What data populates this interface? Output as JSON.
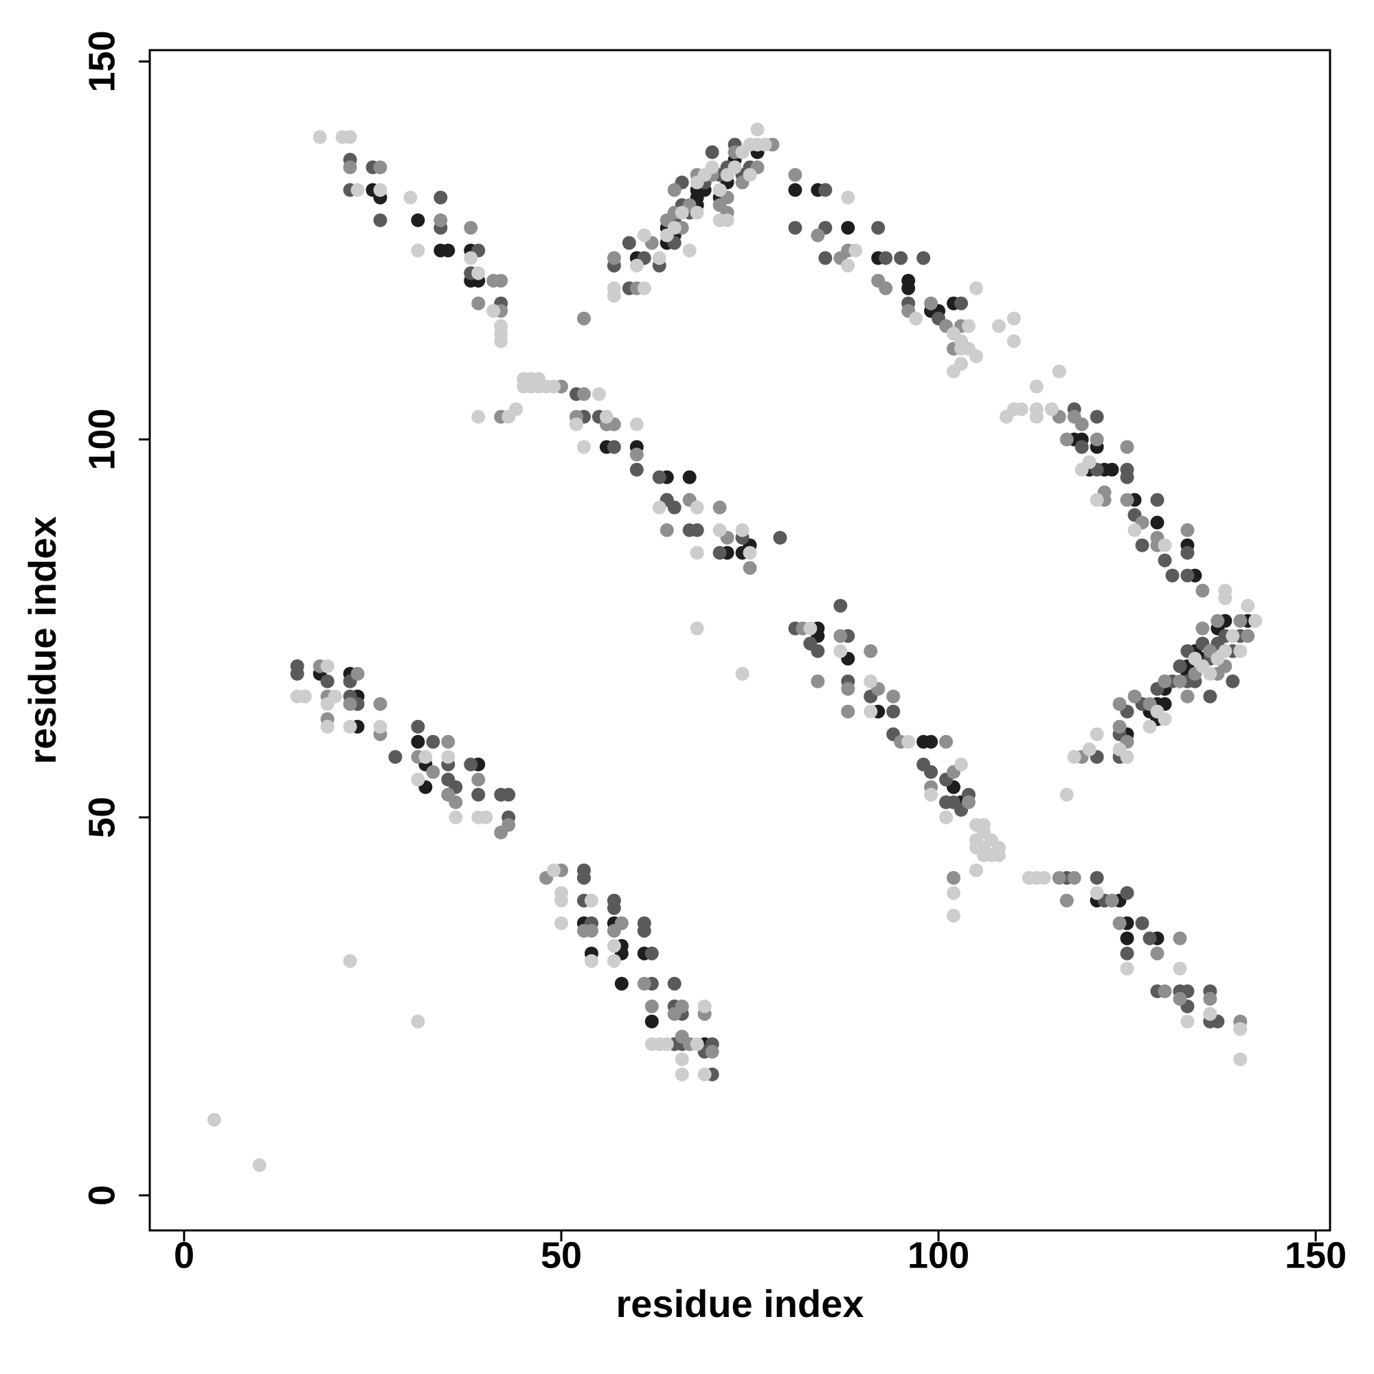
{
  "chart_data": {
    "type": "scatter",
    "xlabel": "residue index",
    "ylabel": "residue index",
    "xlim": [
      -4.55,
      151.9
    ],
    "ylim": [
      -4.64,
      151.5
    ],
    "xticks": [
      0,
      50,
      100,
      150
    ],
    "yticks": [
      0,
      50,
      100,
      150
    ],
    "grid": false,
    "series": [
      {
        "color": "#1e1e1e",
        "x": [
          25,
          26,
          31,
          34,
          35,
          38,
          38,
          39,
          56,
          60,
          64,
          67,
          72,
          74,
          75,
          60,
          64,
          65,
          64,
          68,
          68,
          69,
          71,
          72,
          73,
          76,
          68,
          81,
          84,
          88,
          92,
          96,
          96,
          99,
          100,
          102,
          118,
          119,
          121,
          122,
          123,
          126,
          129,
          133,
          134,
          120,
          125,
          128,
          129,
          130,
          130,
          133,
          133,
          134,
          135,
          137,
          138,
          141,
          129,
          84,
          84,
          88,
          92,
          98,
          99,
          102,
          103,
          121,
          124,
          125,
          125,
          129,
          18,
          22,
          23,
          23,
          31,
          32,
          32,
          39,
          53,
          54,
          57,
          58,
          58,
          61,
          62,
          69,
          58
        ],
        "values": [
          133,
          132,
          129,
          125,
          125,
          125,
          121,
          121,
          99,
          99,
          95,
          95,
          85,
          85,
          86,
          124,
          126,
          127,
          128,
          131,
          132,
          133,
          132,
          134,
          137,
          138,
          133,
          133,
          133,
          128,
          124,
          121,
          120,
          117,
          117,
          118,
          100,
          100,
          99,
          96,
          96,
          92,
          89,
          86,
          82,
          96,
          61,
          64,
          65,
          65,
          67,
          70,
          69,
          72,
          71,
          75,
          76,
          76,
          63,
          75,
          74,
          71,
          64,
          60,
          60,
          54,
          52,
          39,
          39,
          36,
          34,
          34,
          69,
          69,
          66,
          62,
          60,
          57,
          54,
          57,
          36,
          32,
          36,
          33,
          32,
          32,
          23,
          20,
          28
        ]
      },
      {
        "color": "#5a5a5a",
        "x": [
          22,
          22,
          25,
          26,
          34,
          34,
          39,
          38,
          42,
          52,
          53,
          55,
          57,
          60,
          64,
          65,
          63,
          67,
          71,
          74,
          79,
          68,
          57,
          59,
          61,
          63,
          65,
          65,
          66,
          67,
          69,
          71,
          72,
          74,
          75,
          73,
          70,
          66,
          59,
          81,
          85,
          85,
          92,
          93,
          95,
          96,
          98,
          100,
          103,
          85,
          118,
          119,
          121,
          121,
          125,
          126,
          127,
          129,
          130,
          131,
          133,
          133,
          125,
          121,
          124,
          124,
          125,
          127,
          129,
          131,
          132,
          133,
          133,
          134,
          135,
          136,
          137,
          138,
          139,
          140,
          139,
          136,
          81,
          83,
          84,
          87,
          88,
          88,
          91,
          94,
          94,
          98,
          99,
          101,
          101,
          104,
          102,
          103,
          117,
          121,
          122,
          125,
          125,
          127,
          128,
          129,
          132,
          133,
          133,
          136,
          136,
          137,
          15,
          15,
          19,
          22,
          22,
          23,
          28,
          31,
          33,
          35,
          35,
          36,
          38,
          39,
          43,
          43,
          42,
          53,
          53,
          53,
          54,
          57,
          57,
          61,
          61,
          62,
          62,
          65,
          65,
          66,
          65,
          66,
          69,
          70,
          70
        ],
        "values": [
          137,
          133,
          136,
          129,
          132,
          128,
          125,
          122,
          118,
          106,
          103,
          103,
          99,
          96,
          92,
          91,
          95,
          88,
          85,
          87,
          87,
          88,
          123,
          126,
          124,
          123,
          126,
          129,
          131,
          130,
          134,
          135,
          136,
          135,
          136,
          139,
          138,
          134,
          120,
          128,
          128,
          133,
          128,
          124,
          124,
          118,
          124,
          116,
          118,
          124,
          104,
          99,
          103,
          96,
          96,
          90,
          86,
          92,
          84,
          82,
          85,
          82,
          95,
          58,
          61,
          58,
          64,
          65,
          67,
          68,
          70,
          72,
          68,
          68,
          73,
          71,
          73,
          74,
          72,
          74,
          68,
          66,
          75,
          73,
          72,
          78,
          74,
          68,
          66,
          64,
          61,
          57,
          56,
          55,
          52,
          53,
          52,
          51,
          42,
          42,
          39,
          40,
          32,
          36,
          34,
          27,
          27,
          27,
          25,
          27,
          23,
          23,
          70,
          69,
          68,
          68,
          66,
          65,
          58,
          62,
          60,
          57,
          55,
          54,
          57,
          53,
          53,
          50,
          53,
          43,
          42,
          39,
          36,
          39,
          38,
          36,
          35,
          32,
          28,
          28,
          25,
          24,
          20,
          20,
          19,
          20,
          16
        ]
      },
      {
        "color": "#8f8f8f",
        "x": [
          22,
          26,
          34,
          38,
          39,
          41,
          42,
          42,
          50,
          42,
          53,
          52,
          56,
          60,
          64,
          67,
          71,
          72,
          75,
          57,
          57,
          60,
          62,
          64,
          65,
          67,
          68,
          70,
          71,
          72,
          73,
          74,
          76,
          78,
          72,
          65,
          53,
          66,
          81,
          84,
          87,
          88,
          92,
          93,
          96,
          99,
          101,
          103,
          102,
          116,
          117,
          118,
          119,
          121,
          122,
          125,
          125,
          127,
          129,
          129,
          133,
          135,
          122,
          119,
          124,
          125,
          126,
          128,
          130,
          132,
          133,
          134,
          135,
          136,
          137,
          137,
          138,
          140,
          141,
          124,
          82,
          84,
          87,
          88,
          88,
          91,
          92,
          94,
          95,
          99,
          101,
          102,
          104,
          102,
          116,
          118,
          123,
          124,
          129,
          130,
          132,
          132,
          136,
          140,
          117,
          19,
          19,
          22,
          23,
          26,
          26,
          31,
          35,
          33,
          35,
          36,
          39,
          42,
          43,
          18,
          48,
          50,
          54,
          57,
          58,
          61,
          62,
          65,
          66,
          66,
          67,
          69,
          70,
          53
        ],
        "values": [
          136,
          136,
          129,
          128,
          118,
          121,
          121,
          117,
          107,
          103,
          106,
          103,
          102,
          98,
          88,
          92,
          91,
          87,
          83,
          102,
          124,
          120,
          126,
          129,
          130,
          131,
          135,
          135,
          131,
          132,
          138,
          134,
          136,
          139,
          130,
          133,
          116,
          128,
          135,
          127,
          124,
          125,
          121,
          120,
          117,
          118,
          115,
          115,
          112,
          103,
          100,
          103,
          102,
          100,
          93,
          99,
          92,
          89,
          87,
          86,
          88,
          80,
          92,
          58,
          62,
          60,
          66,
          65,
          68,
          68,
          66,
          69,
          75,
          72,
          76,
          69,
          70,
          76,
          74,
          65,
          75,
          68,
          74,
          67,
          64,
          72,
          67,
          66,
          60,
          54,
          60,
          56,
          52,
          42,
          42,
          42,
          39,
          36,
          32,
          27,
          34,
          26,
          26,
          23,
          39,
          66,
          63,
          65,
          69,
          65,
          61,
          58,
          60,
          56,
          53,
          52,
          55,
          48,
          49,
          70,
          42,
          43,
          35,
          35,
          36,
          28,
          25,
          24,
          25,
          21,
          20,
          24,
          19,
          35
        ]
      },
      {
        "color": "#cdcdcd",
        "x": [
          18,
          21,
          22,
          23,
          26,
          30,
          31,
          39,
          42,
          42,
          42,
          41,
          38,
          44,
          45,
          46,
          47,
          46,
          47,
          48,
          49,
          45,
          39,
          43,
          55,
          52,
          53,
          56,
          60,
          63,
          68,
          71,
          74,
          68,
          68,
          74,
          75,
          57,
          60,
          61,
          63,
          64,
          65,
          66,
          68,
          68,
          69,
          71,
          72,
          73,
          74,
          75,
          76,
          77,
          76,
          75,
          70,
          71,
          72,
          67,
          61,
          57,
          88,
          88,
          89,
          97,
          102,
          103,
          103,
          103,
          104,
          104,
          105,
          108,
          110,
          110,
          102,
          105,
          109,
          110,
          111,
          113,
          113,
          113,
          115,
          116,
          120,
          119,
          121,
          126,
          130,
          138,
          118,
          120,
          121,
          124,
          125,
          128,
          129,
          130,
          134,
          135,
          136,
          137,
          138,
          139,
          140,
          141,
          142,
          138,
          117,
          83,
          87,
          91,
          91,
          96,
          99,
          103,
          105,
          105,
          105,
          105,
          106,
          106,
          106,
          106,
          107,
          107,
          108,
          108,
          102,
          102,
          101,
          112,
          113,
          114,
          121,
          125,
          132,
          133,
          136,
          140,
          140,
          15,
          16,
          19,
          19,
          19,
          20,
          22,
          26,
          31,
          32,
          35,
          36,
          39,
          40,
          22,
          31,
          49,
          50,
          50,
          50,
          54,
          54,
          57,
          57,
          62,
          63,
          64,
          66,
          66,
          68,
          69,
          69,
          4,
          10
        ],
        "values": [
          140,
          140,
          140,
          133,
          133,
          132,
          125,
          122,
          115,
          114,
          113,
          117,
          124,
          104,
          107,
          108,
          108,
          107,
          107,
          107,
          107,
          108,
          103,
          103,
          106,
          102,
          99,
          103,
          102,
          91,
          91,
          88,
          88,
          85,
          75,
          69,
          85,
          119,
          123,
          127,
          124,
          127,
          128,
          130,
          130,
          134,
          135,
          133,
          135,
          136,
          138,
          135,
          141,
          139,
          139,
          139,
          136,
          129,
          129,
          125,
          120,
          120,
          132,
          123,
          125,
          116,
          114,
          113,
          112,
          110,
          112,
          115,
          120,
          115,
          113,
          116,
          109,
          111,
          103,
          104,
          104,
          104,
          103,
          107,
          104,
          109,
          97,
          96,
          92,
          88,
          86,
          80,
          58,
          59,
          61,
          59,
          58,
          62,
          64,
          63,
          71,
          70,
          69,
          71,
          72,
          74,
          72,
          78,
          76,
          79,
          53,
          75,
          72,
          68,
          64,
          60,
          53,
          57,
          49,
          47,
          46,
          43,
          49,
          48,
          46,
          45,
          47,
          45,
          46,
          45,
          40,
          37,
          50,
          42,
          42,
          42,
          40,
          30,
          30,
          23,
          24,
          22,
          18,
          66,
          66,
          70,
          65,
          62,
          66,
          62,
          62,
          55,
          58,
          58,
          50,
          50,
          50,
          31,
          23,
          43,
          40,
          39,
          36,
          39,
          31,
          33,
          31,
          20,
          20,
          20,
          18,
          16,
          20,
          25,
          16,
          10,
          4
        ]
      }
    ]
  }
}
